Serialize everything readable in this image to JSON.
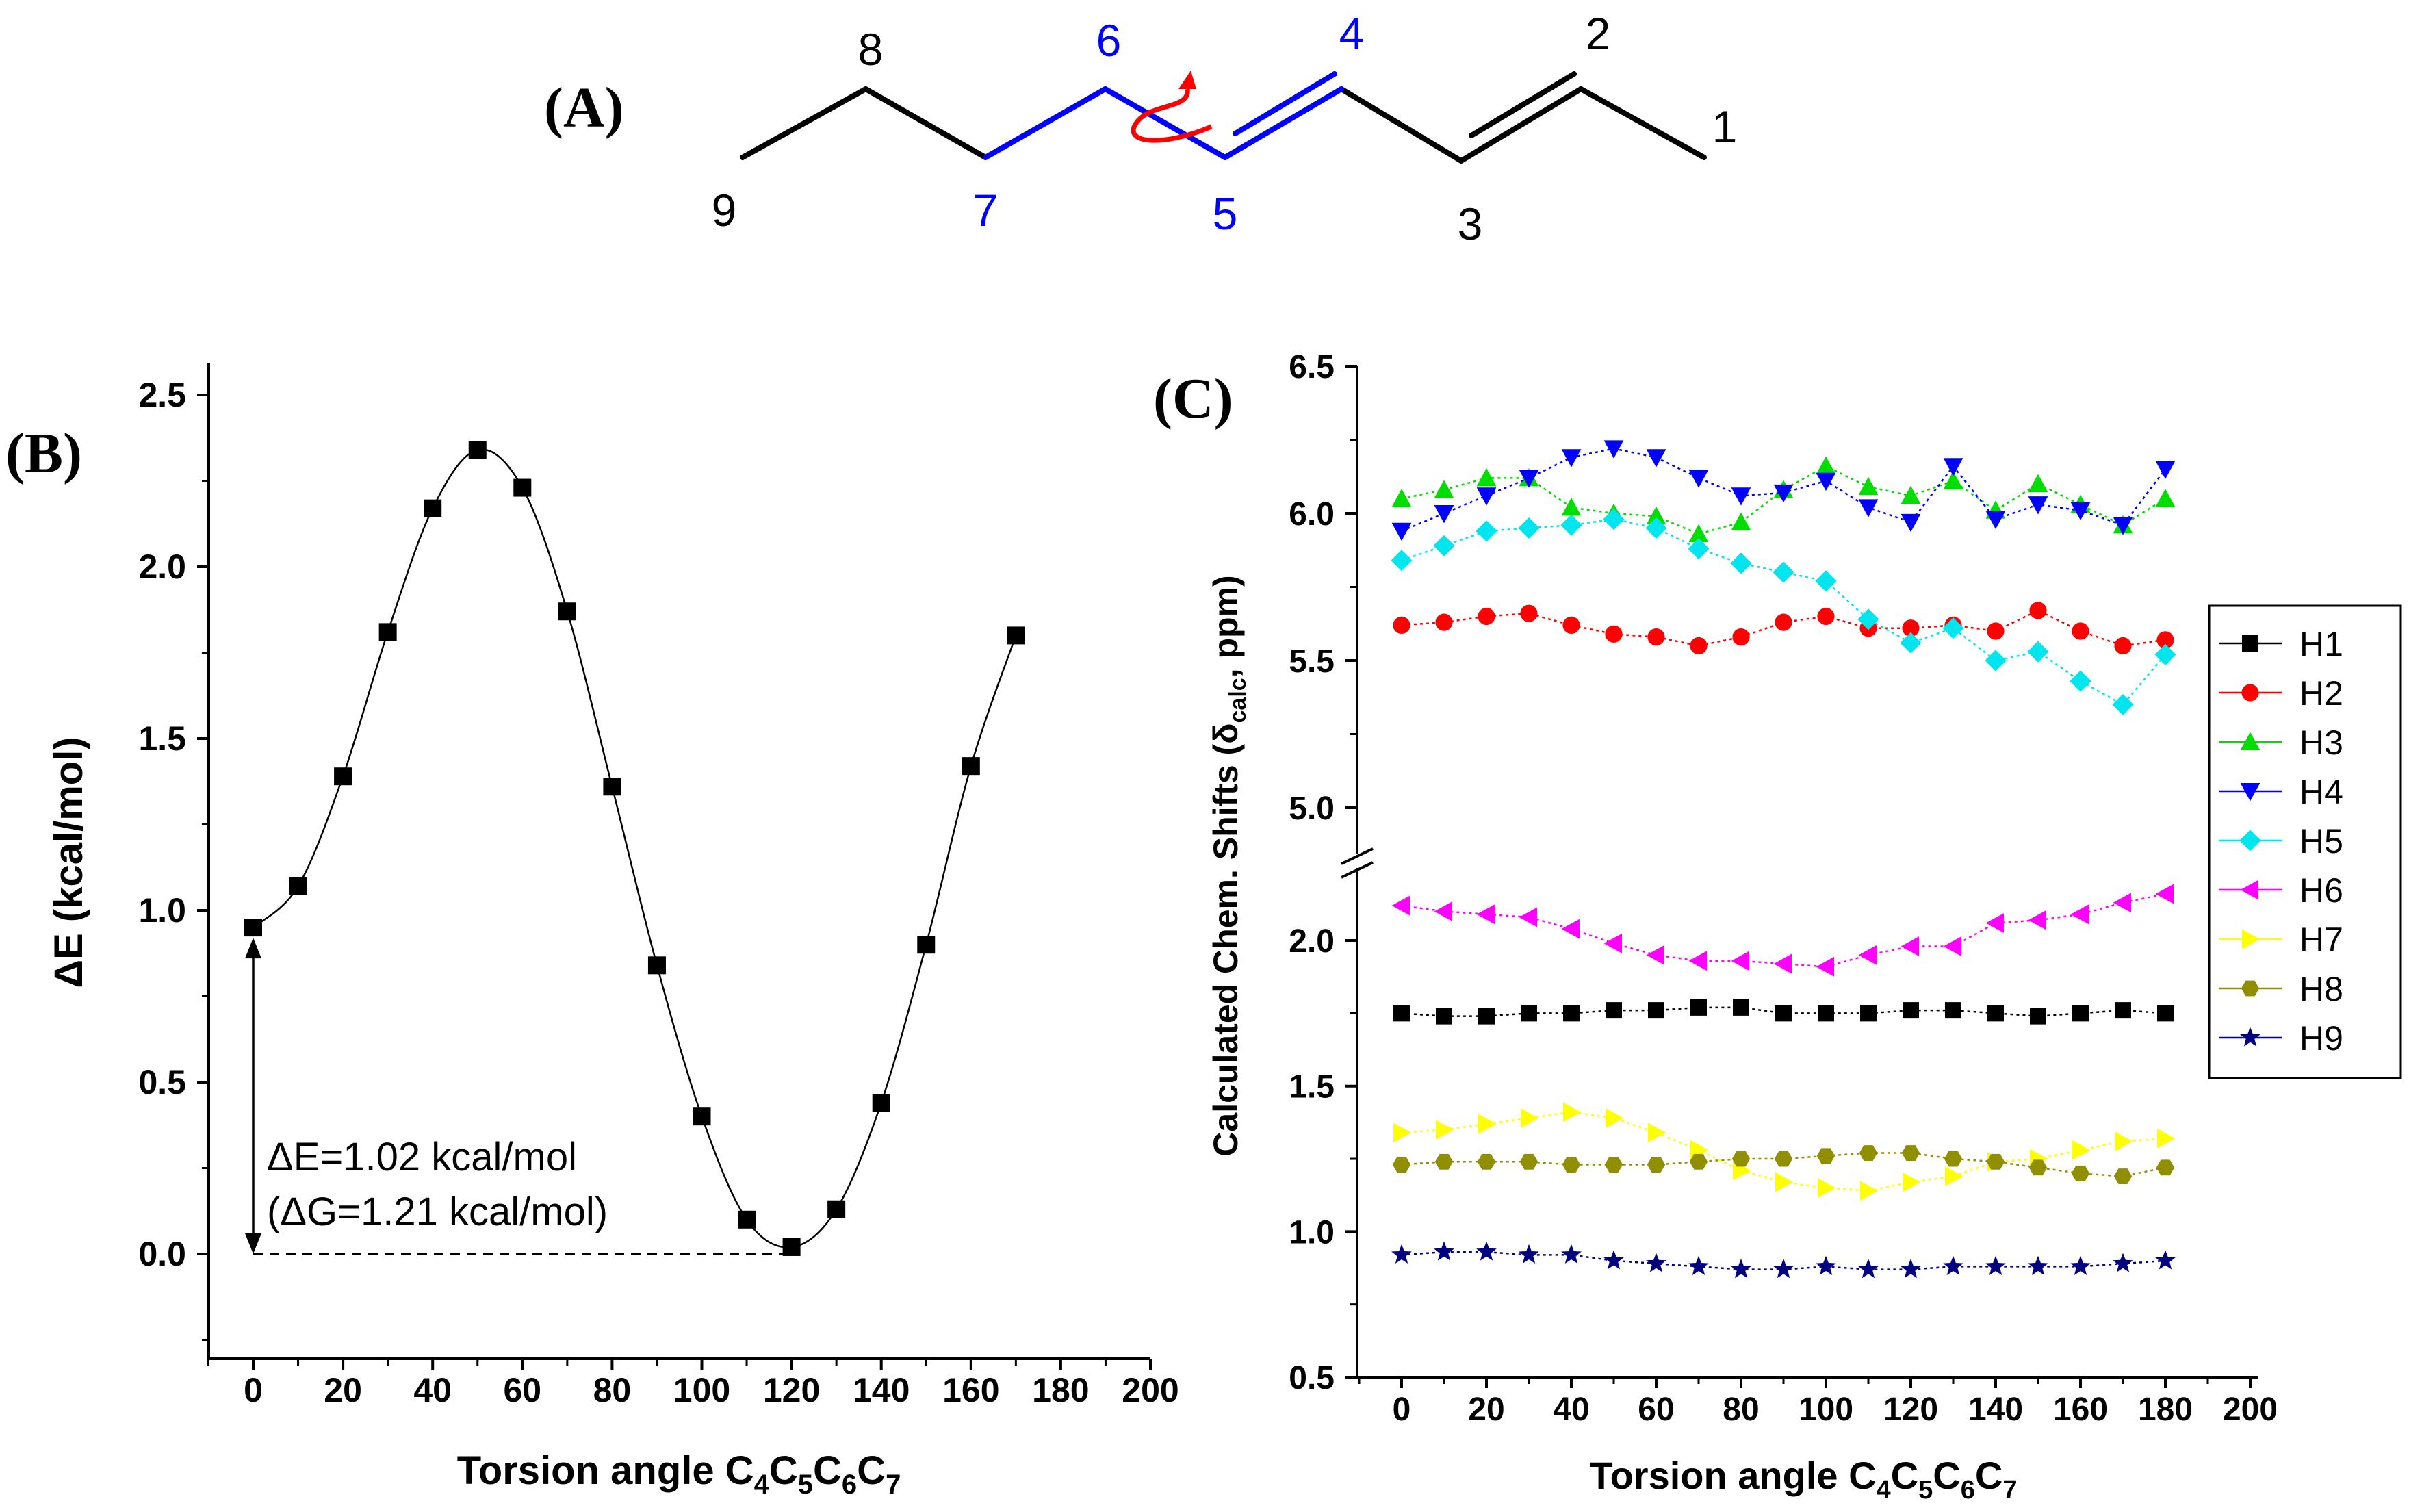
{
  "molecule": {
    "panel_label": "(A)",
    "atoms": [
      {
        "label": "1",
        "color": "#000000"
      },
      {
        "label": "2",
        "color": "#000000"
      },
      {
        "label": "3",
        "color": "#000000"
      },
      {
        "label": "4",
        "color": "#0000ff"
      },
      {
        "label": "5",
        "color": "#0000ff"
      },
      {
        "label": "6",
        "color": "#0000ff"
      },
      {
        "label": "7",
        "color": "#0000ff"
      },
      {
        "label": "8",
        "color": "#000000"
      },
      {
        "label": "9",
        "color": "#000000"
      }
    ],
    "highlight_color": "#0000ff",
    "rotation_arrow_color": "#ff0000"
  },
  "chart_data": [
    {
      "panel_label": "(B)",
      "type": "scatter",
      "xlabel": "Torsion angle C4C5C6C7",
      "ylabel": "ΔE (kcal/mol)",
      "xlim": [
        -10,
        200
      ],
      "ylim": [
        -0.25,
        2.6
      ],
      "xticks": [
        0,
        20,
        40,
        60,
        80,
        100,
        120,
        140,
        160,
        180,
        200
      ],
      "yticks": [
        0.0,
        0.5,
        1.0,
        1.5,
        2.0,
        2.5
      ],
      "x": [
        0,
        10,
        20,
        30,
        40,
        50,
        60,
        70,
        80,
        90,
        100,
        110,
        120,
        130,
        140,
        150,
        160,
        170
      ],
      "y": [
        0.95,
        1.07,
        1.39,
        1.81,
        2.17,
        2.34,
        2.23,
        1.87,
        1.36,
        0.84,
        0.4,
        0.1,
        0.02,
        0.13,
        0.44,
        0.9,
        1.42,
        1.8
      ],
      "annotation": {
        "line1": "ΔE=1.02 kcal/mol",
        "line2": "(ΔG=1.21 kcal/mol)"
      }
    },
    {
      "panel_label": "(C)",
      "type": "line",
      "xlabel": "Torsion angle C4C5C6C7",
      "ylabel": "Calculated Chem. Shifts (δcalc, ppm)",
      "xlim": [
        -10,
        200
      ],
      "ylim_lower": [
        0.5,
        2.2
      ],
      "ylim_upper": [
        4.75,
        6.5
      ],
      "xticks": [
        0,
        20,
        40,
        60,
        80,
        100,
        120,
        140,
        160,
        180,
        200
      ],
      "yticks_lower": [
        0.5,
        1.0,
        1.5,
        2.0
      ],
      "yticks_upper": [
        5.0,
        5.5,
        6.0,
        6.5
      ],
      "x": [
        0,
        10,
        20,
        30,
        40,
        50,
        60,
        70,
        80,
        90,
        100,
        110,
        120,
        130,
        140,
        150,
        160,
        170,
        180
      ],
      "series": [
        {
          "name": "H1",
          "color": "#000000",
          "marker": "square",
          "values": [
            1.75,
            1.74,
            1.74,
            1.75,
            1.75,
            1.76,
            1.76,
            1.77,
            1.77,
            1.75,
            1.75,
            1.75,
            1.76,
            1.76,
            1.75,
            1.74,
            1.75,
            1.76,
            1.75
          ]
        },
        {
          "name": "H2",
          "color": "#ff0000",
          "marker": "circle",
          "values": [
            5.62,
            5.63,
            5.65,
            5.66,
            5.62,
            5.59,
            5.58,
            5.55,
            5.58,
            5.63,
            5.65,
            5.61,
            5.61,
            5.62,
            5.6,
            5.67,
            5.6,
            5.55,
            5.57
          ]
        },
        {
          "name": "H3",
          "color": "#00dd00",
          "marker": "triangle-up",
          "values": [
            6.05,
            6.08,
            6.12,
            6.12,
            6.02,
            6.0,
            5.99,
            5.93,
            5.97,
            6.08,
            6.16,
            6.09,
            6.06,
            6.11,
            6.01,
            6.1,
            6.03,
            5.96,
            6.05
          ]
        },
        {
          "name": "H4",
          "color": "#0000ff",
          "marker": "triangle-down",
          "values": [
            5.94,
            6.0,
            6.06,
            6.12,
            6.19,
            6.22,
            6.19,
            6.12,
            6.06,
            6.07,
            6.11,
            6.02,
            5.97,
            6.16,
            5.98,
            6.03,
            6.01,
            5.96,
            6.15
          ]
        },
        {
          "name": "H5",
          "color": "#00e5ee",
          "marker": "diamond",
          "values": [
            5.84,
            5.89,
            5.94,
            5.95,
            5.96,
            5.98,
            5.95,
            5.88,
            5.83,
            5.8,
            5.77,
            5.64,
            5.56,
            5.61,
            5.5,
            5.53,
            5.43,
            5.35,
            5.52
          ]
        },
        {
          "name": "H6",
          "color": "#ff00ff",
          "marker": "triangle-left",
          "values": [
            2.12,
            2.1,
            2.09,
            2.08,
            2.04,
            1.99,
            1.95,
            1.93,
            1.93,
            1.92,
            1.91,
            1.95,
            1.98,
            1.98,
            2.06,
            2.07,
            2.09,
            2.13,
            2.16
          ]
        },
        {
          "name": "H7",
          "color": "#ffff00",
          "marker": "triangle-right",
          "values": [
            1.34,
            1.35,
            1.37,
            1.39,
            1.41,
            1.39,
            1.34,
            1.28,
            1.21,
            1.17,
            1.15,
            1.14,
            1.17,
            1.19,
            1.24,
            1.25,
            1.28,
            1.31,
            1.32
          ]
        },
        {
          "name": "H8",
          "color": "#8f8f00",
          "marker": "hexagon",
          "values": [
            1.23,
            1.24,
            1.24,
            1.24,
            1.23,
            1.23,
            1.23,
            1.24,
            1.25,
            1.25,
            1.26,
            1.27,
            1.27,
            1.25,
            1.24,
            1.22,
            1.2,
            1.19,
            1.22
          ]
        },
        {
          "name": "H9",
          "color": "#000080",
          "marker": "star",
          "values": [
            0.92,
            0.93,
            0.93,
            0.92,
            0.92,
            0.9,
            0.89,
            0.88,
            0.87,
            0.87,
            0.88,
            0.87,
            0.87,
            0.88,
            0.88,
            0.88,
            0.88,
            0.89,
            0.9
          ]
        }
      ]
    }
  ]
}
